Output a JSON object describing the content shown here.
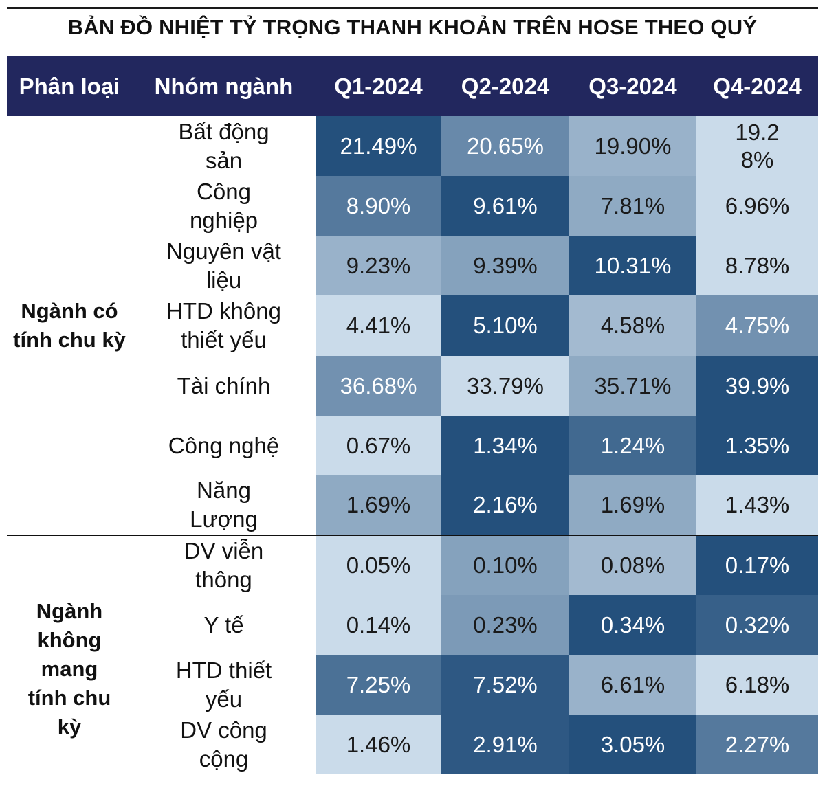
{
  "title": "BẢN ĐỒ NHIỆT TỶ TRỌNG THANH KHOẢN TRÊN HOSE THEO QUÝ",
  "chart_data": {
    "type": "heatmap",
    "title": "BẢN ĐỒ NHIỆT TỶ TRỌNG THANH KHOẢN TRÊN HOSE THEO QUÝ",
    "header": {
      "category": "Phân loại",
      "group": "Nhóm ngành",
      "quarters": [
        "Q1-2024",
        "Q2-2024",
        "Q3-2024",
        "Q4-2024"
      ]
    },
    "categories": [
      {
        "label": "Ngành có tính chu kỳ",
        "rows": [
          {
            "name": "Bất động sản",
            "values": [
              "21.49%",
              "20.65%",
              "19.90%",
              "19.28%"
            ],
            "levels": [
              0.95,
              0.6,
              0.35,
              0.1
            ]
          },
          {
            "name": "Công nghiệp",
            "values": [
              "8.90%",
              "9.61%",
              "7.81%",
              "6.96%"
            ],
            "levels": [
              0.7,
              0.95,
              0.4,
              0.1
            ]
          },
          {
            "name": "Nguyên vật liệu",
            "values": [
              "9.23%",
              "9.39%",
              "10.31%",
              "8.78%"
            ],
            "levels": [
              0.35,
              0.45,
              0.95,
              0.1
            ]
          },
          {
            "name": "HTD không thiết yếu",
            "values": [
              "4.41%",
              "5.10%",
              "4.58%",
              "4.75%"
            ],
            "levels": [
              0.1,
              0.95,
              0.3,
              0.55
            ]
          },
          {
            "name": "Tài chính",
            "values": [
              "36.68%",
              "33.79%",
              "35.71%",
              "39.9%"
            ],
            "levels": [
              0.55,
              0.1,
              0.4,
              0.95
            ]
          },
          {
            "name": "Công nghệ",
            "values": [
              "0.67%",
              "1.34%",
              "1.24%",
              "1.35%"
            ],
            "levels": [
              0.1,
              0.95,
              0.8,
              0.95
            ]
          },
          {
            "name": "Năng Lượng",
            "values": [
              "1.69%",
              "2.16%",
              "1.69%",
              "1.43%"
            ],
            "levels": [
              0.4,
              0.95,
              0.4,
              0.1
            ]
          }
        ]
      },
      {
        "label": "Ngành không mang tính chu kỳ",
        "rows": [
          {
            "name": "DV viễn thông",
            "values": [
              "0.05%",
              "0.10%",
              "0.08%",
              "0.17%"
            ],
            "levels": [
              0.1,
              0.45,
              0.3,
              0.95
            ]
          },
          {
            "name": "Y tế",
            "values": [
              "0.14%",
              "0.23%",
              "0.34%",
              "0.32%"
            ],
            "levels": [
              0.1,
              0.5,
              0.95,
              0.85
            ]
          },
          {
            "name": "HTD thiết yếu",
            "values": [
              "7.25%",
              "7.52%",
              "6.61%",
              "6.18%"
            ],
            "levels": [
              0.75,
              0.9,
              0.35,
              0.1
            ]
          },
          {
            "name": "DV công cộng",
            "values": [
              "1.46%",
              "2.91%",
              "3.05%",
              "2.27%"
            ],
            "levels": [
              0.1,
              0.9,
              0.95,
              0.7
            ]
          }
        ]
      }
    ]
  }
}
